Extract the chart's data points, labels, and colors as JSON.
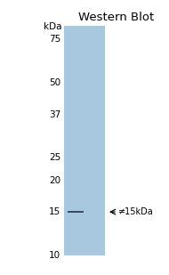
{
  "title": "Western Blot",
  "background_color": "#ffffff",
  "gel_color": "#a8c8e0",
  "kda_labels": [
    75,
    50,
    37,
    25,
    20,
    15,
    10
  ],
  "kda_label_str": [
    "75",
    "50",
    "37",
    "25",
    "20",
    "15",
    "10"
  ],
  "kda_header": "kDa",
  "band_kda": 15,
  "arrow_label": "≠15kDa",
  "title_fontsize": 9.5,
  "tick_fontsize": 7.5,
  "header_fontsize": 7.5,
  "band_color": "#3a4a6a",
  "log_min": 10,
  "log_max": 85
}
